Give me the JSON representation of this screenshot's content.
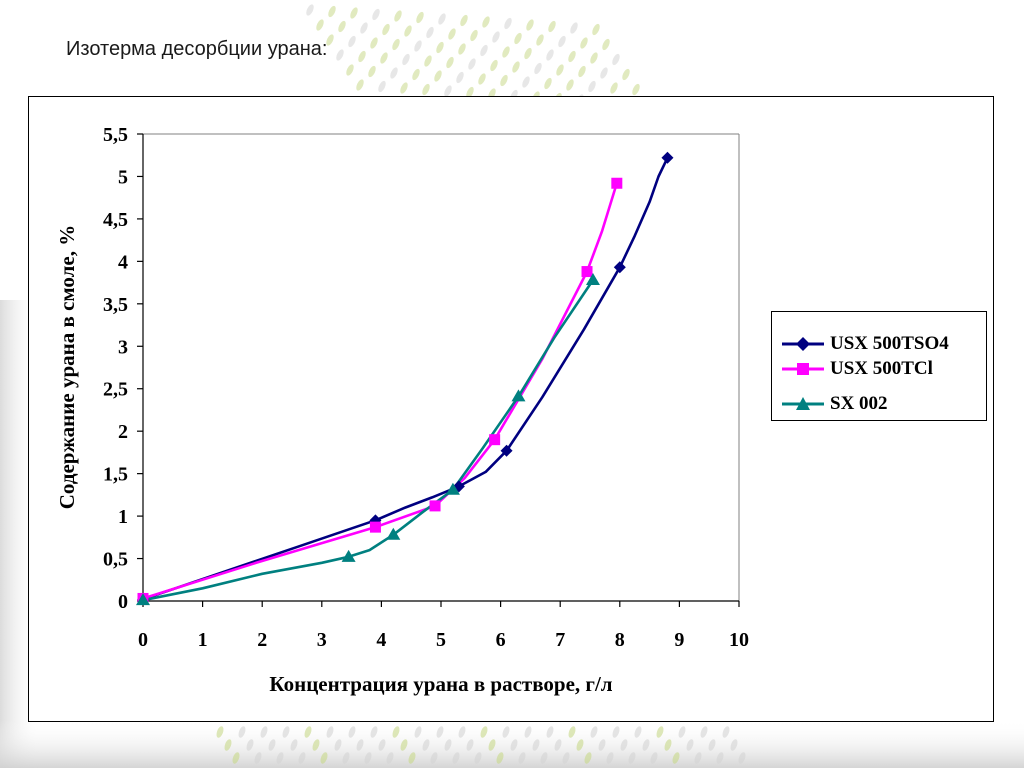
{
  "slide": {
    "title": "Изотерма десорбции урана:"
  },
  "colors": {
    "background": "#ffffff",
    "deco_green": "#c8d88a",
    "deco_gray": "#d4d4d4"
  },
  "chart_data": {
    "type": "line",
    "title": "",
    "xlabel": "Концентрация урана в растворе, г/л",
    "ylabel": "Содержание урана в смоле, %",
    "xlim": [
      0,
      10
    ],
    "ylim": [
      0,
      5.5
    ],
    "x_ticks": [
      "0",
      "1",
      "2",
      "3",
      "4",
      "5",
      "6",
      "7",
      "8",
      "9",
      "10"
    ],
    "x_tick_values": [
      0,
      1,
      2,
      3,
      4,
      5,
      6,
      7,
      8,
      9,
      10
    ],
    "y_ticks": [
      "0",
      "0,5",
      "1",
      "1,5",
      "2",
      "2,5",
      "3",
      "3,5",
      "4",
      "4,5",
      "5",
      "5,5"
    ],
    "y_tick_values": [
      0,
      0.5,
      1,
      1.5,
      2,
      2.5,
      3,
      3.5,
      4,
      4.5,
      5,
      5.5
    ],
    "grid": false,
    "legend_position": "right",
    "series": [
      {
        "name": "USX 500TSO4",
        "color": "#000080",
        "marker": "diamond",
        "x": [
          0,
          3.9,
          5.3,
          6.1,
          8.0,
          8.8
        ],
        "y": [
          0.02,
          0.95,
          1.35,
          1.77,
          3.93,
          5.22
        ],
        "curve_x": [
          0,
          1.3,
          2.6,
          3.9,
          4.4,
          4.85,
          5.3,
          5.75,
          6.1,
          6.7,
          7.4,
          8.0,
          8.25,
          8.5,
          8.65,
          8.8
        ],
        "curve_y": [
          0.02,
          0.33,
          0.64,
          0.95,
          1.1,
          1.22,
          1.35,
          1.52,
          1.77,
          2.4,
          3.2,
          3.93,
          4.3,
          4.7,
          5.0,
          5.22
        ]
      },
      {
        "name": "USX 500TCl",
        "color": "#ff00ff",
        "marker": "square",
        "x": [
          0,
          3.9,
          4.9,
          5.9,
          7.45,
          7.95
        ],
        "y": [
          0.03,
          0.87,
          1.12,
          1.9,
          3.88,
          4.92
        ],
        "curve_x": [
          0,
          1.9,
          3.9,
          4.9,
          5.4,
          5.9,
          6.7,
          7.45,
          7.7,
          7.95
        ],
        "curve_y": [
          0.03,
          0.45,
          0.87,
          1.12,
          1.45,
          1.9,
          2.85,
          3.88,
          4.35,
          4.92
        ]
      },
      {
        "name": "SX 002",
        "color": "#008080",
        "marker": "triangle",
        "x": [
          0,
          3.45,
          4.2,
          5.2,
          6.3,
          7.55
        ],
        "y": [
          0.01,
          0.52,
          0.78,
          1.31,
          2.41,
          3.78
        ],
        "curve_x": [
          0,
          1.0,
          2.0,
          3.0,
          3.45,
          3.8,
          4.2,
          4.7,
          5.2,
          5.7,
          6.3,
          6.9,
          7.55
        ],
        "curve_y": [
          0.01,
          0.15,
          0.32,
          0.45,
          0.52,
          0.6,
          0.78,
          1.05,
          1.31,
          1.8,
          2.41,
          3.1,
          3.78
        ]
      }
    ]
  }
}
